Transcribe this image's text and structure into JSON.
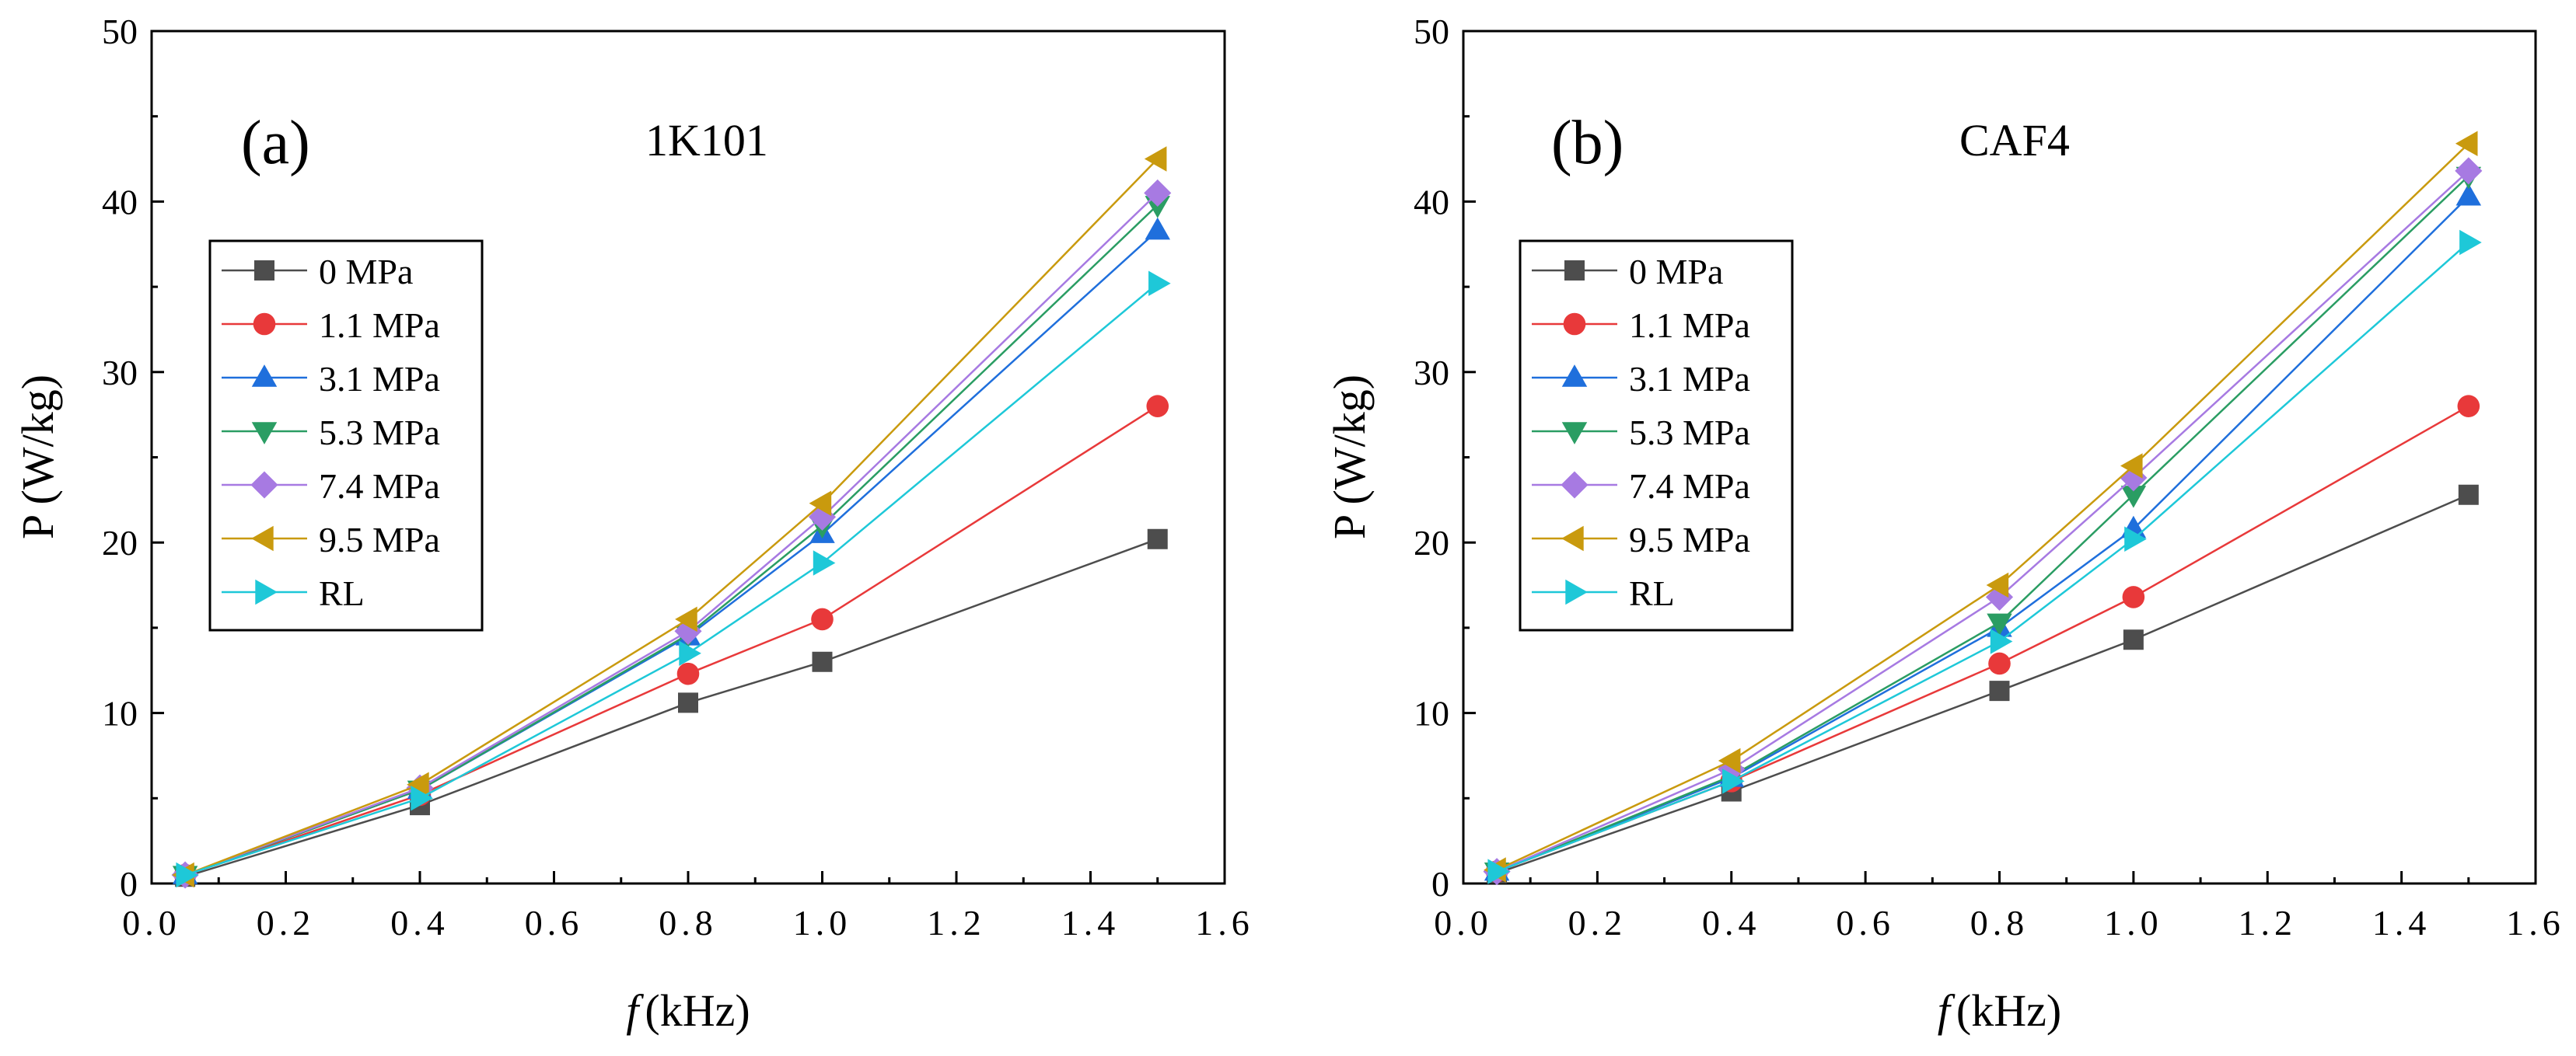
{
  "colors": {
    "0 MPa": "#4d4d4d",
    "1.1 MPa": "#e8393a",
    "3.1 MPa": "#1f6fdc",
    "5.3 MPa": "#2a9d63",
    "7.4 MPa": "#a77ae2",
    "9.5 MPa": "#c99a0e",
    "RL": "#1ec8d8"
  },
  "chart_data": [
    {
      "type": "line",
      "panel_label": "(a)",
      "title": "1K101",
      "xlabel_italic": "f",
      "xlabel": "(kHz)",
      "ylabel": "P (W/kg)",
      "xlim": [
        0.0,
        1.6
      ],
      "ylim": [
        0,
        50
      ],
      "xticks": [
        "0.0",
        "0.2",
        "0.4",
        "0.6",
        "0.8",
        "1.0",
        "1.2",
        "1.4",
        "1.6"
      ],
      "yticks": [
        "0",
        "10",
        "20",
        "30",
        "40",
        "50"
      ],
      "x": [
        0.05,
        0.4,
        0.8,
        1.0,
        1.5
      ],
      "legend": "left",
      "series": [
        {
          "name": "0 MPa",
          "marker": "square",
          "values": [
            0.4,
            4.6,
            10.6,
            13.0,
            20.2
          ]
        },
        {
          "name": "1.1 MPa",
          "marker": "circle",
          "values": [
            0.5,
            5.2,
            12.3,
            15.5,
            28.0
          ]
        },
        {
          "name": "3.1 MPa",
          "marker": "triangle-up",
          "values": [
            0.5,
            5.5,
            14.5,
            20.5,
            38.3
          ]
        },
        {
          "name": "5.3 MPa",
          "marker": "triangle-down",
          "values": [
            0.5,
            5.5,
            14.6,
            21.0,
            39.8
          ]
        },
        {
          "name": "7.4 MPa",
          "marker": "diamond",
          "values": [
            0.5,
            5.6,
            14.8,
            21.5,
            40.5
          ]
        },
        {
          "name": "9.5 MPa",
          "marker": "triangle-left",
          "values": [
            0.5,
            5.8,
            15.5,
            22.3,
            42.5
          ]
        },
        {
          "name": "RL",
          "marker": "triangle-right",
          "values": [
            0.5,
            5.0,
            13.5,
            18.8,
            35.2
          ]
        }
      ]
    },
    {
      "type": "line",
      "panel_label": "(b)",
      "title": "CAF4",
      "xlabel_italic": "f",
      "xlabel": "(kHz)",
      "ylabel": "P (W/kg)",
      "xlim": [
        0.0,
        1.6
      ],
      "ylim": [
        0,
        50
      ],
      "xticks": [
        "0.0",
        "0.2",
        "0.4",
        "0.6",
        "0.8",
        "1.0",
        "1.2",
        "1.4",
        "1.6"
      ],
      "yticks": [
        "0",
        "10",
        "20",
        "30",
        "40",
        "50"
      ],
      "x": [
        0.05,
        0.4,
        0.8,
        1.0,
        1.5
      ],
      "legend": "left",
      "series": [
        {
          "name": "0 MPa",
          "marker": "square",
          "values": [
            0.6,
            5.4,
            11.3,
            14.3,
            22.8
          ]
        },
        {
          "name": "1.1 MPa",
          "marker": "circle",
          "values": [
            0.7,
            6.0,
            12.9,
            16.8,
            28.0
          ]
        },
        {
          "name": "3.1 MPa",
          "marker": "triangle-up",
          "values": [
            0.7,
            6.2,
            15.0,
            20.8,
            40.3
          ]
        },
        {
          "name": "5.3 MPa",
          "marker": "triangle-down",
          "values": [
            0.7,
            6.3,
            15.3,
            22.8,
            41.5
          ]
        },
        {
          "name": "7.4 MPa",
          "marker": "diamond",
          "values": [
            0.7,
            6.7,
            16.8,
            23.8,
            41.8
          ]
        },
        {
          "name": "9.5 MPa",
          "marker": "triangle-left",
          "values": [
            0.8,
            7.2,
            17.5,
            24.5,
            43.4
          ]
        },
        {
          "name": "RL",
          "marker": "triangle-right",
          "values": [
            0.7,
            6.0,
            14.2,
            20.2,
            37.6
          ]
        }
      ]
    }
  ]
}
